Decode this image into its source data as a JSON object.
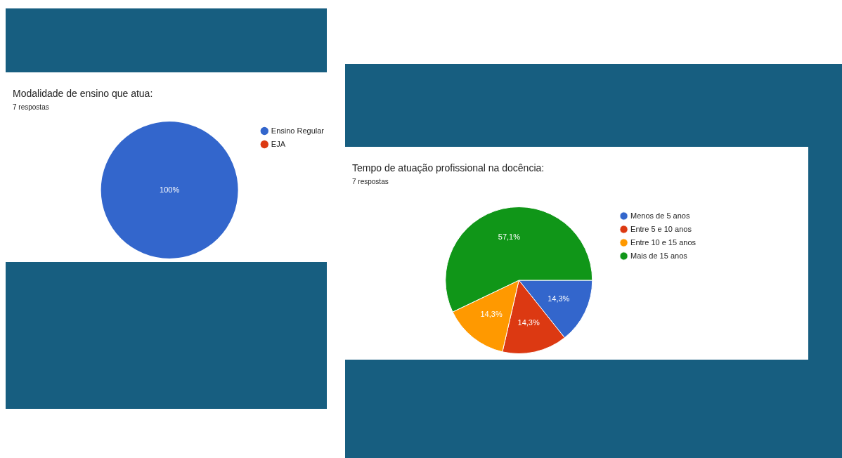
{
  "chart_data": [
    {
      "type": "pie",
      "title": "Modalidade de ensino que atua:",
      "subtitle": "7 respostas",
      "categories": [
        "Ensino Regular",
        "EJA"
      ],
      "values": [
        100,
        0
      ],
      "colors": [
        "#3366cc",
        "#dc3912"
      ],
      "value_labels": [
        "100%",
        null
      ],
      "legend": "right"
    },
    {
      "type": "pie",
      "title": "Tempo de atuação profissional na docência:",
      "subtitle": "7 respostas",
      "categories": [
        "Menos de 5 anos",
        "Entre 5 e 10 anos",
        "Entre 10 e 15 anos",
        "Mais de 15 anos"
      ],
      "values": [
        14.3,
        14.3,
        14.3,
        57.1
      ],
      "colors": [
        "#3366cc",
        "#dc3912",
        "#ff9900",
        "#109618"
      ],
      "value_labels": [
        "14,3%",
        "14,3%",
        "14,3%",
        "57,1%"
      ],
      "legend": "right"
    }
  ]
}
